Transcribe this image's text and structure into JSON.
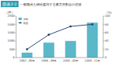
{
  "chart_data": {
    "type": "bar",
    "figure_number": "図表2-2",
    "title": "一般職員を継続雇用する事業所割合の推移",
    "categories": [
      "1992～95年",
      "1996～99年",
      "2000～05年",
      "2006～11年"
    ],
    "ylabel": "（件）",
    "y2label": "（%）",
    "ylim": [
      0,
      2500
    ],
    "yticks": [
      0,
      500,
      1000,
      1500,
      2000,
      2500
    ],
    "y2lim": [
      0,
      100
    ],
    "y2ticks": [
      0,
      20,
      40,
      60,
      80,
      100
    ],
    "grid": false,
    "legend": "upper left",
    "series": [
      {
        "name": "件数",
        "type": "bar",
        "color": "#5bb8c9",
        "values": [
          300,
          900,
          1000,
          2100
        ]
      },
      {
        "name": "割合",
        "type": "line",
        "axis": "y2",
        "color": "#1f3f73",
        "marker": "circle",
        "values": [
          20,
          55,
          75,
          80
        ]
      }
    ]
  }
}
